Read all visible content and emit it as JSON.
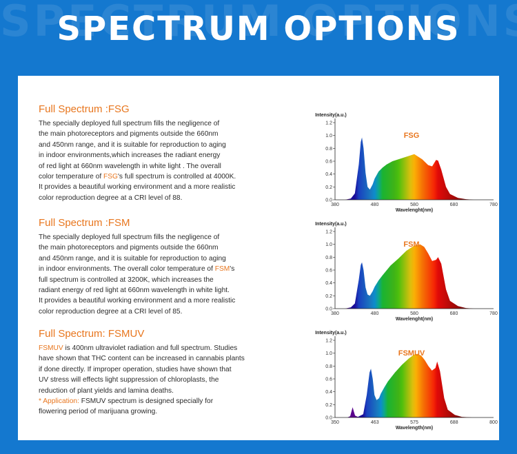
{
  "page": {
    "title": "SPECTRUM OPTIONS",
    "watermark": "SPECTRUM OPTIONS",
    "colors": {
      "background": "#1478cf",
      "card": "#ffffff",
      "accent": "#e8761e",
      "text": "#2b2b2b"
    }
  },
  "sections": [
    {
      "heading": "Full Spectrum :FSG",
      "lines": [
        [
          "The specially deployed full spectrum  fills the negligence of"
        ],
        [
          "the main photoreceptors and pigments outside the 660nm"
        ],
        [
          "and 450nm range, and it is suitable for reproduction to aging"
        ],
        [
          "in indoor environments,which increases the radiant energy"
        ],
        [
          "of red light at 660nm wavelength in white light . The overall"
        ],
        [
          "color temperature of ",
          "FSG",
          "'s full spectrum is controlled at 4000K."
        ],
        [
          "It provides a beautiful working environment and a more realistic"
        ],
        [
          "color reproduction degree at a CRI level of 88."
        ]
      ]
    },
    {
      "heading": "Full Spectrum :FSM",
      "lines": [
        [
          "The specially deployed full  spectrum fills the negligence of"
        ],
        [
          "the main photoreceptors and pigments outside the 660nm"
        ],
        [
          "and 450nm range, and it is suitable for reproduction to aging"
        ],
        [
          "in indoor environments. The overall color temperature of ",
          "FSM",
          "'s"
        ],
        [
          "full spectrum is controlled at 3200K, which increases the"
        ],
        [
          "radiant energy of red light at 660nm wavelength in white light."
        ],
        [
          "It provides a beautiful working environment and a more realistic"
        ],
        [
          "color reproduction degree at a CRI level of 85."
        ]
      ]
    },
    {
      "heading": "Full Spectrum: FSMUV",
      "lines": [
        [
          "",
          "FSMUV",
          " is 400nm ultraviolet radiation and full spectrum. Studies"
        ],
        [
          "have shown that THC content can be increased in cannabis plants"
        ],
        [
          "if done directly. If improper operation, studies have shown that"
        ],
        [
          "UV stress will effects light suppression of chloroplasts, the"
        ],
        [
          "reduction of plant yields and lamina deaths."
        ],
        [
          "",
          "* Application:",
          " FSMUV spectrum is designed specially for"
        ],
        [
          "flowering period of marijuana growing."
        ]
      ]
    }
  ],
  "chart_data": [
    {
      "type": "area",
      "title": "FSG",
      "ylabel": "Intensity(a.u.)",
      "xlabel": "Wavelenght(nm)",
      "xlim": [
        380,
        780
      ],
      "ylim": [
        0,
        1.2
      ],
      "xticks": [
        380,
        480,
        580,
        680,
        780
      ],
      "yticks": [
        0.0,
        0.2,
        0.4,
        0.6,
        0.8,
        1.0,
        1.2
      ],
      "series": [
        {
          "x": [
            380,
            405,
            420,
            430,
            440,
            445,
            448,
            452,
            457,
            462,
            468,
            475,
            480,
            490,
            500,
            510,
            525,
            540,
            560,
            580,
            600,
            615,
            625,
            630,
            635,
            640,
            648,
            660,
            670,
            690,
            710,
            730,
            760,
            780
          ],
          "values": [
            0,
            0,
            0.02,
            0.1,
            0.55,
            0.9,
            0.97,
            0.8,
            0.42,
            0.2,
            0.16,
            0.24,
            0.33,
            0.44,
            0.5,
            0.55,
            0.6,
            0.63,
            0.67,
            0.71,
            0.63,
            0.54,
            0.52,
            0.57,
            0.62,
            0.61,
            0.47,
            0.2,
            0.09,
            0.03,
            0.01,
            0,
            0,
            0
          ]
        }
      ]
    },
    {
      "type": "area",
      "title": "FSM",
      "ylabel": "Intensity(a.u.)",
      "xlabel": "Wavelenght(nm)",
      "xlim": [
        380,
        780
      ],
      "ylim": [
        0,
        1.2
      ],
      "xticks": [
        380,
        480,
        580,
        680,
        780
      ],
      "yticks": [
        0.0,
        0.2,
        0.4,
        0.6,
        0.8,
        1.0,
        1.2
      ],
      "series": [
        {
          "x": [
            380,
            405,
            420,
            430,
            440,
            445,
            448,
            452,
            457,
            462,
            468,
            475,
            480,
            490,
            500,
            520,
            540,
            560,
            580,
            595,
            605,
            615,
            625,
            635,
            640,
            648,
            660,
            670,
            690,
            710,
            730,
            760,
            780
          ],
          "values": [
            0,
            0,
            0.02,
            0.08,
            0.45,
            0.68,
            0.72,
            0.6,
            0.33,
            0.22,
            0.2,
            0.27,
            0.34,
            0.44,
            0.52,
            0.67,
            0.78,
            0.9,
            0.98,
            1.0,
            0.96,
            0.86,
            0.74,
            0.76,
            0.8,
            0.7,
            0.3,
            0.12,
            0.04,
            0.01,
            0,
            0,
            0
          ]
        }
      ]
    },
    {
      "type": "area",
      "title": "FSMUV",
      "ylabel": "Intensity(a.u.)",
      "xlabel": "Wavelength(nm)",
      "xlim": [
        350,
        800
      ],
      "ylim": [
        0,
        1.2
      ],
      "xticks": [
        350,
        463,
        575,
        688,
        800
      ],
      "yticks": [
        0.0,
        0.2,
        0.4,
        0.6,
        0.8,
        1.0,
        1.2
      ],
      "series": [
        {
          "x": [
            350,
            385,
            393,
            397,
            400,
            403,
            407,
            415,
            430,
            440,
            448,
            452,
            457,
            462,
            468,
            475,
            480,
            490,
            500,
            520,
            540,
            560,
            575,
            585,
            595,
            605,
            615,
            625,
            635,
            640,
            648,
            660,
            670,
            690,
            710,
            740,
            770,
            800
          ],
          "values": [
            0,
            0,
            0.02,
            0.1,
            0.16,
            0.1,
            0.03,
            0.01,
            0.05,
            0.35,
            0.7,
            0.76,
            0.6,
            0.35,
            0.27,
            0.3,
            0.37,
            0.47,
            0.56,
            0.7,
            0.82,
            0.92,
            0.98,
            0.99,
            0.96,
            0.89,
            0.8,
            0.73,
            0.77,
            0.87,
            0.72,
            0.3,
            0.12,
            0.04,
            0.01,
            0,
            0,
            0
          ]
        }
      ]
    }
  ]
}
